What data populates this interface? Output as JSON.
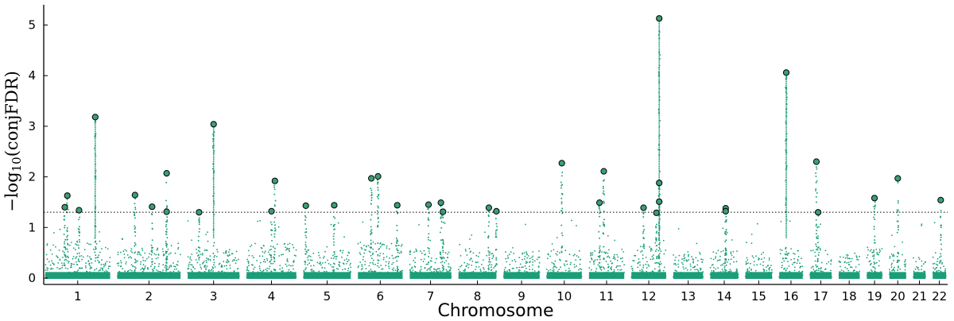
{
  "chart_data": {
    "type": "scatter",
    "title": "",
    "xlabel": "Chromosome",
    "ylabel": {
      "prefix": "−log",
      "subscript": "10",
      "suffix": "(conjFDR)"
    },
    "ylim": [
      0,
      5.4
    ],
    "yticks": [
      0,
      1,
      2,
      3,
      4,
      5
    ],
    "threshold": 1.3,
    "threshold_style": "dotted",
    "grid": false,
    "colors": {
      "points": "#1a9e78",
      "lead_fill": "#3a9f72",
      "lead_edge": "#000000",
      "threshold": "#000000"
    },
    "chromosomes": [
      "1",
      "2",
      "3",
      "4",
      "5",
      "6",
      "7",
      "8",
      "9",
      "10",
      "11",
      "12",
      "13",
      "14",
      "15",
      "16",
      "17",
      "18",
      "19",
      "20",
      "21",
      "22"
    ],
    "chromosome_label_text": [
      "1",
      "2",
      "3",
      "4",
      "5",
      "6",
      "7",
      "8",
      "9",
      "10",
      "11",
      "12",
      "13",
      "14",
      "15",
      "16",
      "17",
      "18",
      "19",
      "20",
      "21",
      "22"
    ],
    "chromosome_lengths_mb": [
      248,
      242,
      198,
      190,
      181,
      171,
      159,
      145,
      138,
      134,
      135,
      133,
      114,
      107,
      102,
      90,
      83,
      80,
      59,
      64,
      47,
      51
    ],
    "background_max": [
      0.7,
      0.6,
      0.55,
      0.7,
      0.55,
      0.7,
      0.55,
      0.55,
      0.5,
      0.55,
      0.55,
      0.6,
      0.5,
      0.55,
      0.5,
      0.55,
      0.55,
      0.5,
      0.6,
      0.5,
      0.45,
      0.5
    ],
    "lead_snps": [
      {
        "chr": "1",
        "pos": 0.3,
        "value": 1.4
      },
      {
        "chr": "1",
        "pos": 0.34,
        "value": 1.63
      },
      {
        "chr": "1",
        "pos": 0.52,
        "value": 1.34
      },
      {
        "chr": "1",
        "pos": 0.77,
        "value": 3.18
      },
      {
        "chr": "2",
        "pos": 0.28,
        "value": 1.64
      },
      {
        "chr": "2",
        "pos": 0.55,
        "value": 1.41
      },
      {
        "chr": "2",
        "pos": 0.78,
        "value": 2.07
      },
      {
        "chr": "2",
        "pos": 0.78,
        "value": 1.31
      },
      {
        "chr": "3",
        "pos": 0.22,
        "value": 1.3
      },
      {
        "chr": "3",
        "pos": 0.5,
        "value": 3.04
      },
      {
        "chr": "4",
        "pos": 0.5,
        "value": 1.32
      },
      {
        "chr": "4",
        "pos": 0.57,
        "value": 1.92
      },
      {
        "chr": "5",
        "pos": 0.05,
        "value": 1.43
      },
      {
        "chr": "5",
        "pos": 0.65,
        "value": 1.44
      },
      {
        "chr": "6",
        "pos": 0.3,
        "value": 1.97
      },
      {
        "chr": "6",
        "pos": 0.45,
        "value": 2.01
      },
      {
        "chr": "6",
        "pos": 0.88,
        "value": 1.44
      },
      {
        "chr": "7",
        "pos": 0.45,
        "value": 1.45
      },
      {
        "chr": "7",
        "pos": 0.75,
        "value": 1.49
      },
      {
        "chr": "7",
        "pos": 0.8,
        "value": 1.31
      },
      {
        "chr": "8",
        "pos": 0.8,
        "value": 1.39
      },
      {
        "chr": "8",
        "pos": 1.0,
        "value": 1.32
      },
      {
        "chr": "10",
        "pos": 0.43,
        "value": 2.27
      },
      {
        "chr": "11",
        "pos": 0.3,
        "value": 1.49
      },
      {
        "chr": "11",
        "pos": 0.42,
        "value": 2.11
      },
      {
        "chr": "12",
        "pos": 0.35,
        "value": 1.39
      },
      {
        "chr": "12",
        "pos": 0.72,
        "value": 1.29
      },
      {
        "chr": "12",
        "pos": 0.8,
        "value": 1.51
      },
      {
        "chr": "12",
        "pos": 0.8,
        "value": 1.88
      },
      {
        "chr": "12",
        "pos": 0.8,
        "value": 5.13
      },
      {
        "chr": "14",
        "pos": 0.55,
        "value": 1.38
      },
      {
        "chr": "14",
        "pos": 0.55,
        "value": 1.32
      },
      {
        "chr": "16",
        "pos": 0.3,
        "value": 4.06
      },
      {
        "chr": "17",
        "pos": 0.3,
        "value": 2.3
      },
      {
        "chr": "17",
        "pos": 0.38,
        "value": 1.3
      },
      {
        "chr": "19",
        "pos": 0.5,
        "value": 1.58
      },
      {
        "chr": "20",
        "pos": 0.5,
        "value": 1.97
      },
      {
        "chr": "22",
        "pos": 0.6,
        "value": 1.54
      }
    ]
  }
}
